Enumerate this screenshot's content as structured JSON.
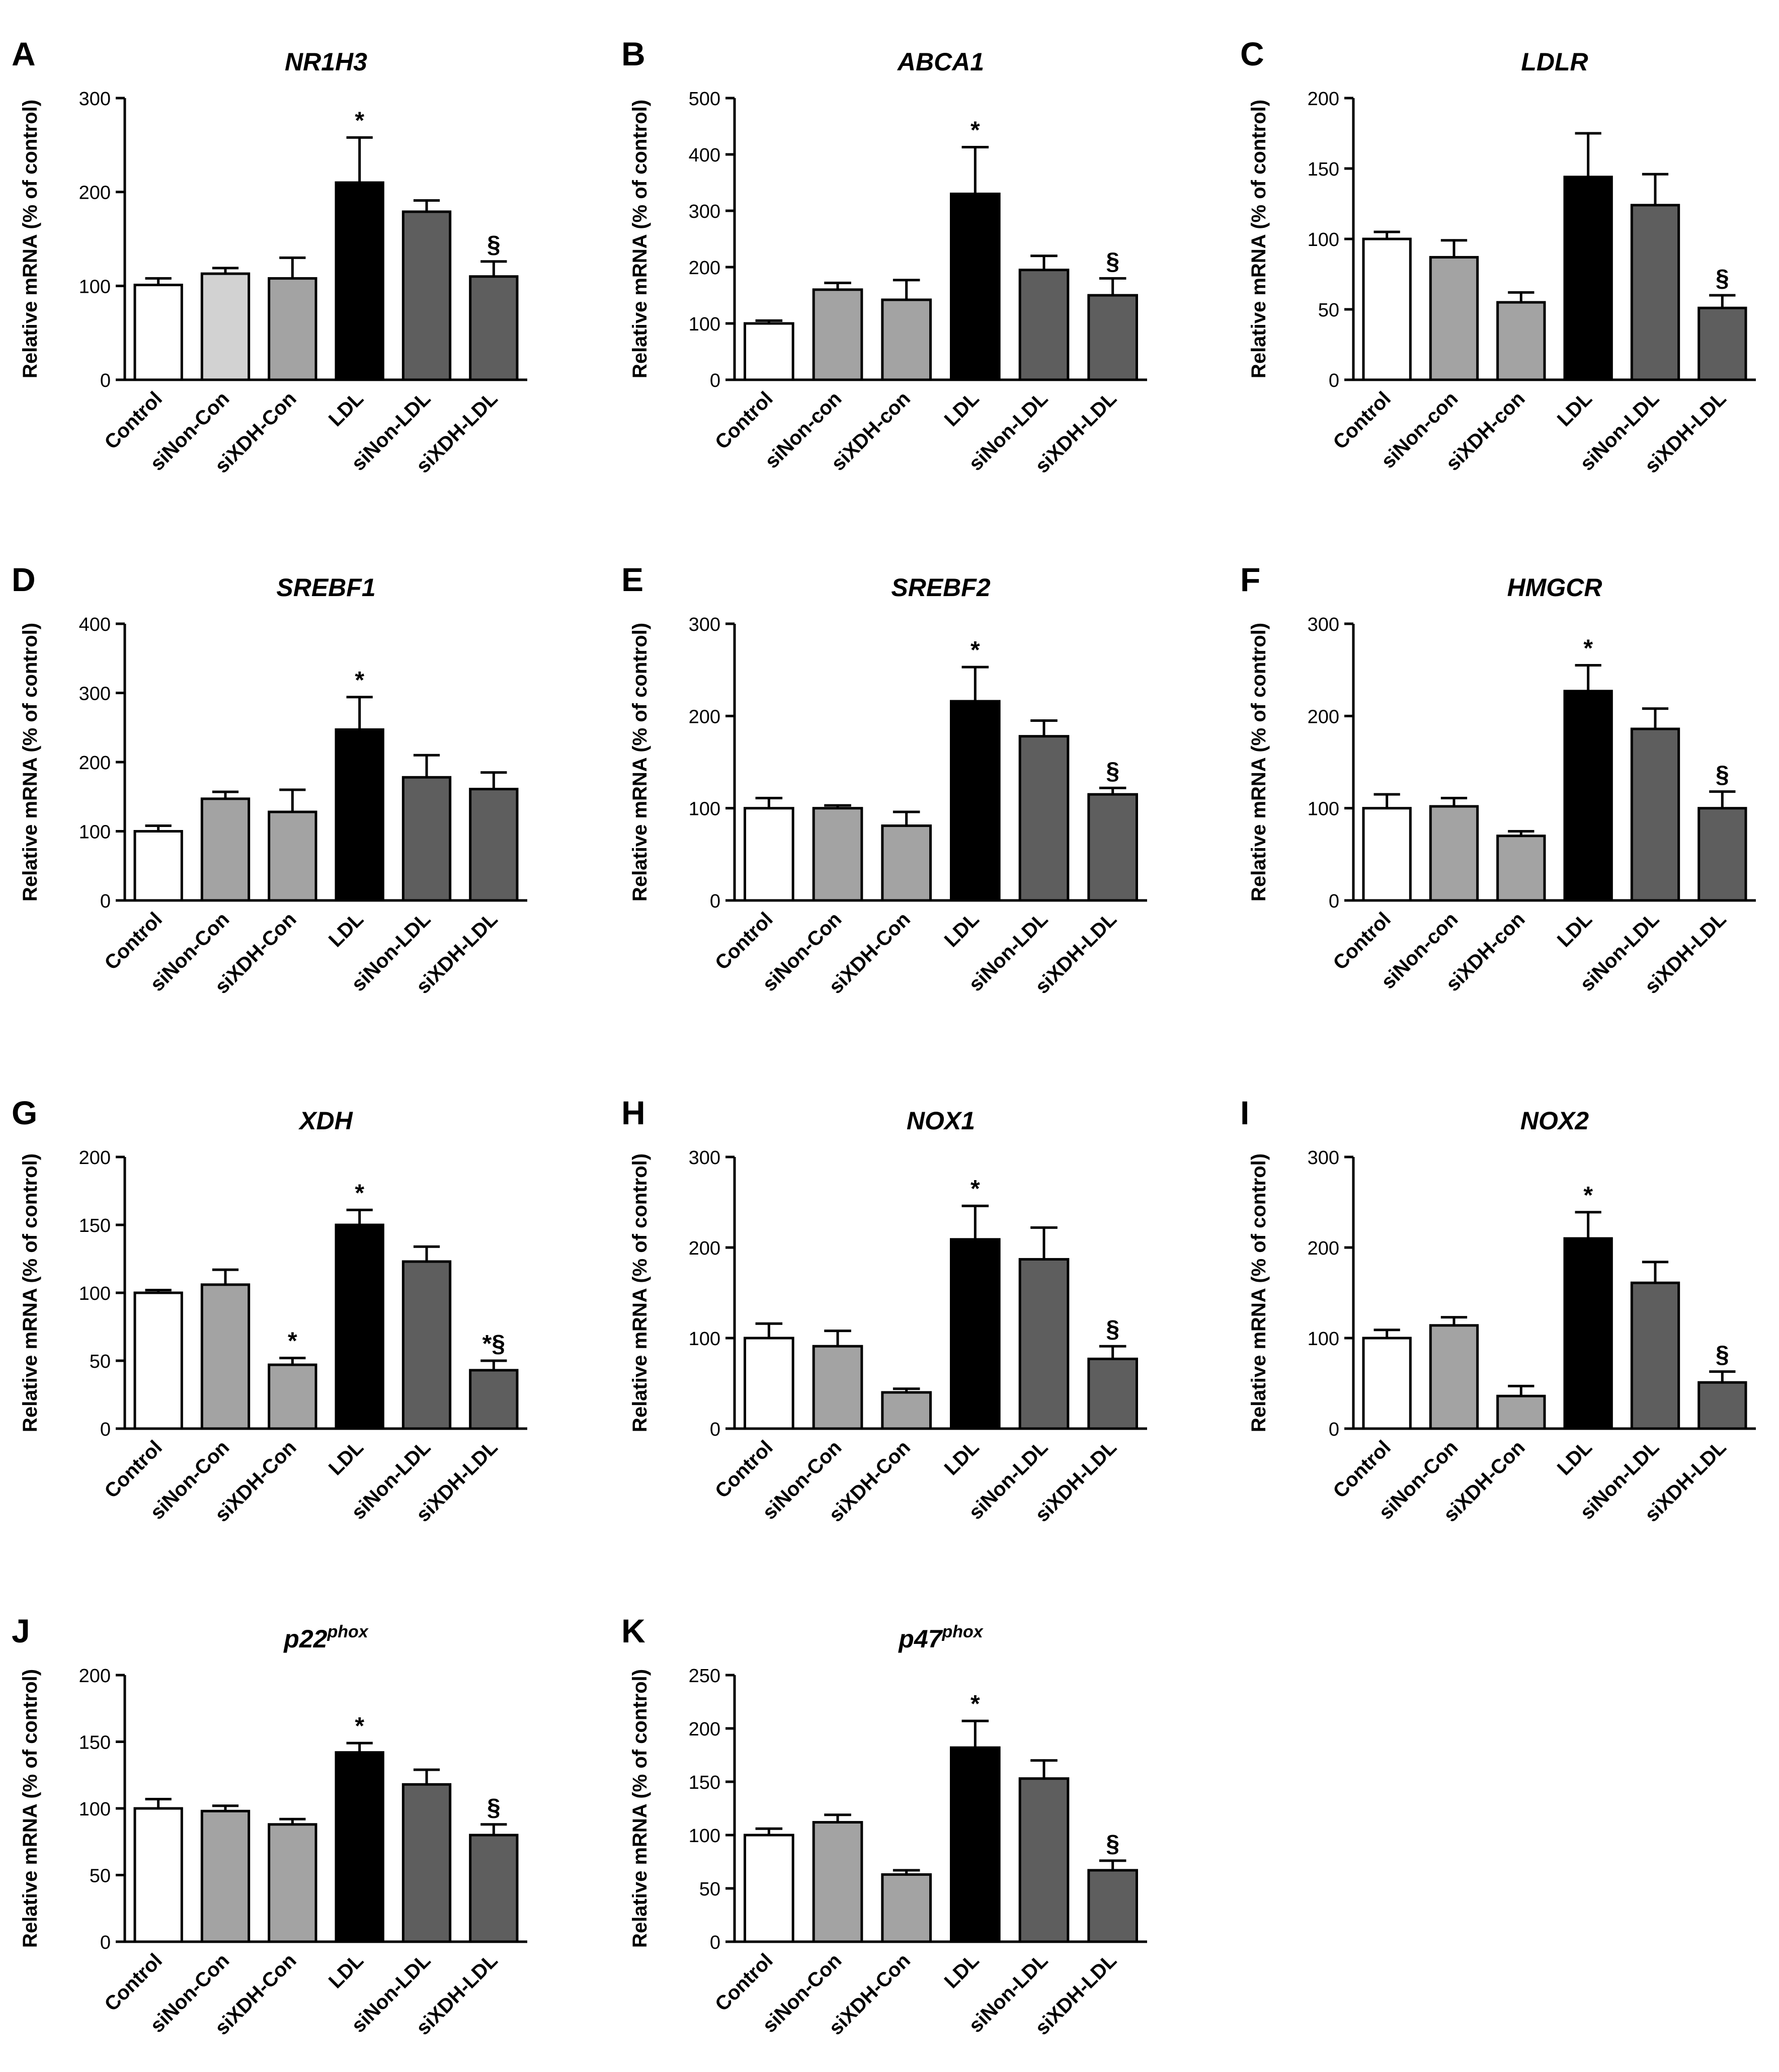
{
  "figure": {
    "ylabel": "Relative mRNA (% of control)",
    "colors": {
      "Control": "#ffffff",
      "siNon-Con": "#a3a3a3",
      "siXDH-Con": "#a3a3a3",
      "LDL": "#000000",
      "siNon-LDL": "#5e5e5e",
      "siXDH-LDL": "#5e5e5e",
      "siNon-Con-A": "#d2d2d2",
      "axis": "#000000"
    }
  },
  "chart_data": [
    {
      "panel": "A",
      "title": "NR1H3",
      "type": "bar",
      "categories": [
        "Control",
        "siNon-Con",
        "siXDH-Con",
        "LDL",
        "siNon-LDL",
        "siXDH-LDL"
      ],
      "values": [
        101,
        113,
        108,
        210,
        179,
        110
      ],
      "errors": [
        7,
        6,
        22,
        48,
        12,
        16
      ],
      "annotations": [
        "",
        "",
        "",
        "*",
        "",
        "§"
      ],
      "ylabel": "Relative mRNA (% of control)",
      "ylim": [
        0,
        300
      ],
      "ticks": [
        0,
        100,
        200,
        300
      ]
    },
    {
      "panel": "B",
      "title": "ABCA1",
      "type": "bar",
      "categories": [
        "Control",
        "siNon-con",
        "siXDH-con",
        "LDL",
        "siNon-LDL",
        "siXDH-LDL"
      ],
      "values": [
        100,
        160,
        142,
        330,
        195,
        150
      ],
      "errors": [
        5,
        12,
        35,
        83,
        25,
        30
      ],
      "annotations": [
        "",
        "",
        "",
        "*",
        "",
        "§"
      ],
      "ylabel": "Relative mRNA (% of control)",
      "ylim": [
        0,
        500
      ],
      "ticks": [
        0,
        100,
        200,
        300,
        400,
        500
      ]
    },
    {
      "panel": "C",
      "title": "LDLR",
      "type": "bar",
      "categories": [
        "Control",
        "siNon-con",
        "siXDH-con",
        "LDL",
        "siNon-LDL",
        "siXDH-LDL"
      ],
      "values": [
        100,
        87,
        55,
        144,
        124,
        51
      ],
      "errors": [
        5,
        12,
        7,
        31,
        22,
        9
      ],
      "annotations": [
        "",
        "",
        "",
        "",
        "",
        "§"
      ],
      "ylabel": "Relative mRNA (% of control)",
      "ylim": [
        0,
        200
      ],
      "ticks": [
        0,
        50,
        100,
        150,
        200
      ]
    },
    {
      "panel": "D",
      "title": "SREBF1",
      "type": "bar",
      "categories": [
        "Control",
        "siNon-Con",
        "siXDH-Con",
        "LDL",
        "siNon-LDL",
        "siXDH-LDL"
      ],
      "values": [
        100,
        147,
        128,
        247,
        178,
        161
      ],
      "errors": [
        8,
        10,
        32,
        47,
        32,
        24
      ],
      "annotations": [
        "",
        "",
        "",
        "*",
        "",
        ""
      ],
      "ylabel": "Relative mRNA (% of control)",
      "ylim": [
        0,
        400
      ],
      "ticks": [
        0,
        100,
        200,
        300,
        400
      ]
    },
    {
      "panel": "E",
      "title": "SREBF2",
      "type": "bar",
      "categories": [
        "Control",
        "siNon-Con",
        "siXDH-Con",
        "LDL",
        "siNon-LDL",
        "siXDH-LDL"
      ],
      "values": [
        100,
        100,
        81,
        216,
        178,
        115
      ],
      "errors": [
        11,
        3,
        15,
        37,
        17,
        7
      ],
      "annotations": [
        "",
        "",
        "",
        "*",
        "",
        "§"
      ],
      "ylabel": "Relative mRNA (% of control)",
      "ylim": [
        0,
        300
      ],
      "ticks": [
        0,
        100,
        200,
        300
      ]
    },
    {
      "panel": "F",
      "title": "HMGCR",
      "type": "bar",
      "categories": [
        "Control",
        "siNon-con",
        "siXDH-con",
        "LDL",
        "siNon-LDL",
        "siXDH-LDL"
      ],
      "values": [
        100,
        102,
        70,
        227,
        186,
        100
      ],
      "errors": [
        15,
        9,
        5,
        28,
        22,
        18
      ],
      "annotations": [
        "",
        "",
        "",
        "*",
        "",
        "§"
      ],
      "ylabel": "Relative mRNA (% of control)",
      "ylim": [
        0,
        300
      ],
      "ticks": [
        0,
        100,
        200,
        300
      ]
    },
    {
      "panel": "G",
      "title": "XDH",
      "type": "bar",
      "categories": [
        "Control",
        "siNon-Con",
        "siXDH-Con",
        "LDL",
        "siNon-LDL",
        "siXDH-LDL"
      ],
      "values": [
        100,
        106,
        47,
        150,
        123,
        43
      ],
      "errors": [
        2,
        11,
        5,
        11,
        11,
        7
      ],
      "annotations": [
        "",
        "",
        "*",
        "*",
        "",
        "*§"
      ],
      "ylabel": "Relative mRNA (% of control)",
      "ylim": [
        0,
        200
      ],
      "ticks": [
        0,
        50,
        100,
        150,
        200
      ]
    },
    {
      "panel": "H",
      "title": "NOX1",
      "type": "bar",
      "categories": [
        "Control",
        "siNon-Con",
        "siXDH-Con",
        "LDL",
        "siNon-LDL",
        "siXDH-LDL"
      ],
      "values": [
        100,
        91,
        40,
        209,
        187,
        77
      ],
      "errors": [
        16,
        17,
        4,
        37,
        35,
        14
      ],
      "annotations": [
        "",
        "",
        "",
        "*",
        "",
        "§"
      ],
      "ylabel": "Relative mRNA (% of control)",
      "ylim": [
        0,
        300
      ],
      "ticks": [
        0,
        100,
        200,
        300
      ]
    },
    {
      "panel": "I",
      "title": "NOX2",
      "type": "bar",
      "categories": [
        "Control",
        "siNon-Con",
        "siXDH-Con",
        "LDL",
        "siNon-LDL",
        "siXDH-LDL"
      ],
      "values": [
        100,
        114,
        36,
        210,
        161,
        51
      ],
      "errors": [
        9,
        9,
        11,
        29,
        23,
        12
      ],
      "annotations": [
        "",
        "",
        "",
        "*",
        "",
        "§"
      ],
      "ylabel": "Relative mRNA (% of control)",
      "ylim": [
        0,
        300
      ],
      "ticks": [
        0,
        100,
        200,
        300
      ]
    },
    {
      "panel": "J",
      "title": "p22",
      "title_sup": "phox",
      "type": "bar",
      "categories": [
        "Control",
        "siNon-Con",
        "siXDH-Con",
        "LDL",
        "siNon-LDL",
        "siXDH-LDL"
      ],
      "values": [
        100,
        98,
        88,
        142,
        118,
        80
      ],
      "errors": [
        7,
        4,
        4,
        7,
        11,
        8
      ],
      "annotations": [
        "",
        "",
        "",
        "*",
        "",
        "§"
      ],
      "ylabel": "Relative mRNA (% of control)",
      "ylim": [
        0,
        200
      ],
      "ticks": [
        0,
        50,
        100,
        150,
        200
      ]
    },
    {
      "panel": "K",
      "title": "p47",
      "title_sup": "phox",
      "type": "bar",
      "categories": [
        "Control",
        "siNon-Con",
        "siXDH-Con",
        "LDL",
        "siNon-LDL",
        "siXDH-LDL"
      ],
      "values": [
        100,
        112,
        63,
        182,
        153,
        67
      ],
      "errors": [
        6,
        7,
        4,
        25,
        17,
        9
      ],
      "annotations": [
        "",
        "",
        "",
        "*",
        "",
        "§"
      ],
      "ylabel": "Relative mRNA (% of control)",
      "ylim": [
        0,
        250
      ],
      "ticks": [
        0,
        50,
        100,
        150,
        200,
        250
      ]
    }
  ]
}
